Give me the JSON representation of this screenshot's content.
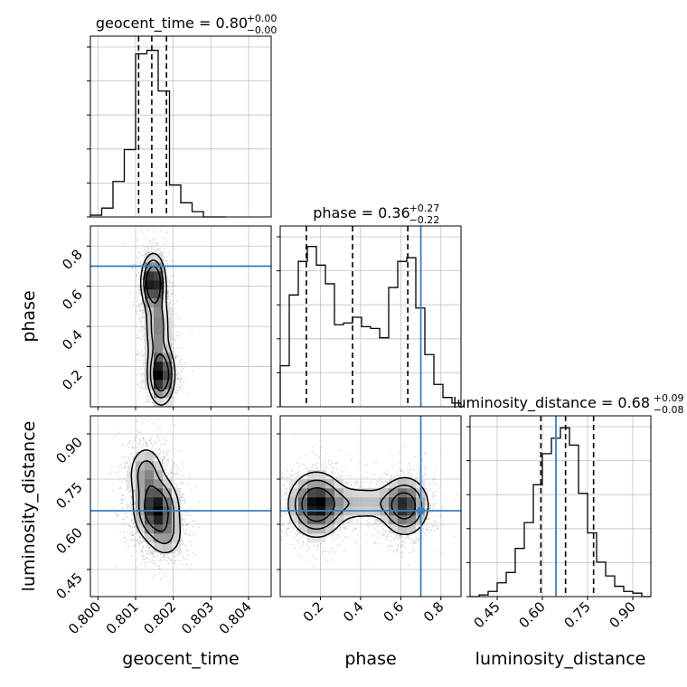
{
  "chart_data": {
    "type": "corner",
    "parameters": [
      "geocent_time",
      "phase",
      "luminosity_distance"
    ],
    "truths": {
      "geocent_time": null,
      "phase": 0.7,
      "luminosity_distance": 0.645
    },
    "colors": {
      "truth": "#3f7fbf",
      "hist": "#000000",
      "grid": "#c0c0c0",
      "scatter": "#9a9a9a"
    },
    "diagonal": [
      {
        "param": "geocent_time",
        "title_main": "geocent_time = 0.80",
        "title_sup": "+0.00",
        "title_sub": "−0.00",
        "xlim": [
          0.7998,
          0.8046
        ],
        "quantiles": [
          0.80108,
          0.80143,
          0.80182
        ],
        "bin_edges": [
          0.7998,
          0.8001,
          0.8004,
          0.8007,
          0.801,
          0.8013,
          0.8016,
          0.8019,
          0.8022,
          0.8025,
          0.8028,
          0.8031,
          0.8034
        ],
        "counts": [
          0.01,
          0.05,
          0.2,
          0.38,
          0.92,
          0.94,
          0.71,
          0.18,
          0.08,
          0.03,
          0.0,
          0.0
        ],
        "ymax": 1.02
      },
      {
        "param": "phase",
        "title_main": "phase = 0.36",
        "title_sup": "+0.27",
        "title_sub": "−0.22",
        "xlim": [
          0.0,
          0.9
        ],
        "quantiles": [
          0.13,
          0.36,
          0.635
        ],
        "bin_edges": [
          0.0,
          0.045,
          0.09,
          0.135,
          0.18,
          0.225,
          0.27,
          0.315,
          0.36,
          0.405,
          0.45,
          0.495,
          0.54,
          0.585,
          0.63,
          0.675,
          0.72,
          0.765,
          0.81,
          0.855,
          0.9
        ],
        "counts": [
          0.22,
          0.6,
          0.78,
          0.86,
          0.76,
          0.66,
          0.44,
          0.45,
          0.48,
          0.43,
          0.42,
          0.37,
          0.64,
          0.78,
          0.8,
          0.53,
          0.28,
          0.12,
          0.05,
          0.02
        ],
        "ymax": 0.97
      },
      {
        "param": "luminosity_distance",
        "title_main": "luminosity_distance = 0.68",
        "title_sup": "+0.09",
        "title_sub": "−0.08",
        "xlim": [
          0.36,
          0.96
        ],
        "quantiles": [
          0.595,
          0.677,
          0.77
        ],
        "bin_edges": [
          0.36,
          0.39,
          0.42,
          0.45,
          0.48,
          0.51,
          0.54,
          0.57,
          0.6,
          0.63,
          0.66,
          0.69,
          0.72,
          0.75,
          0.78,
          0.81,
          0.84,
          0.87,
          0.9,
          0.93,
          0.96
        ],
        "counts": [
          0.0,
          0.01,
          0.03,
          0.08,
          0.14,
          0.28,
          0.43,
          0.65,
          0.83,
          0.92,
          0.98,
          0.88,
          0.6,
          0.37,
          0.2,
          0.12,
          0.06,
          0.03,
          0.02,
          0.0
        ],
        "ymax": 1.05
      }
    ],
    "off_diagonal": [
      {
        "x": "geocent_time",
        "y": "phase",
        "blobs": [
          {
            "cx": 0.80147,
            "cy": 0.62,
            "sx": 0.00016,
            "sy": 0.07,
            "w": 1.0
          },
          {
            "cx": 0.80168,
            "cy": 0.16,
            "sx": 0.00018,
            "sy": 0.075,
            "w": 0.95
          },
          {
            "cx": 0.80158,
            "cy": 0.4,
            "sx": 0.00017,
            "sy": 0.1,
            "w": 0.45
          }
        ]
      },
      {
        "x": "geocent_time",
        "y": "luminosity_distance",
        "blobs": [
          {
            "cx": 0.80155,
            "cy": 0.65,
            "sx": 0.0003,
            "sy": 0.055,
            "w": 1.0
          },
          {
            "cx": 0.80128,
            "cy": 0.77,
            "sx": 0.00025,
            "sy": 0.05,
            "w": 0.45
          },
          {
            "cx": 0.80182,
            "cy": 0.56,
            "sx": 0.00025,
            "sy": 0.04,
            "w": 0.3
          }
        ]
      },
      {
        "x": "phase",
        "y": "luminosity_distance",
        "blobs": [
          {
            "cx": 0.18,
            "cy": 0.665,
            "sx": 0.07,
            "sy": 0.055,
            "w": 1.0
          },
          {
            "cx": 0.62,
            "cy": 0.66,
            "sx": 0.06,
            "sy": 0.05,
            "w": 0.85
          },
          {
            "cx": 0.4,
            "cy": 0.67,
            "sx": 0.14,
            "sy": 0.035,
            "w": 0.3
          }
        ]
      }
    ],
    "axes": {
      "geocent_time": {
        "lim": [
          0.7998,
          0.8046
        ],
        "ticks": [
          0.8,
          0.801,
          0.802,
          0.803,
          0.804
        ],
        "tick_labels": [
          "0.800",
          "0.801",
          "0.802",
          "0.803",
          "0.804"
        ]
      },
      "phase": {
        "lim": [
          0.0,
          0.9
        ],
        "ticks": [
          0.2,
          0.4,
          0.6,
          0.8
        ],
        "tick_labels": [
          "0.2",
          "0.4",
          "0.6",
          "0.8"
        ]
      },
      "luminosity_distance": {
        "lim": [
          0.36,
          0.96
        ],
        "ticks": [
          0.45,
          0.6,
          0.75,
          0.9
        ],
        "tick_labels": [
          "0.45",
          "0.60",
          "0.75",
          "0.90"
        ]
      }
    },
    "axis_labels": {
      "geocent_time": "geocent_time",
      "phase": "phase",
      "luminosity_distance": "luminosity_distance"
    },
    "grid": true
  }
}
